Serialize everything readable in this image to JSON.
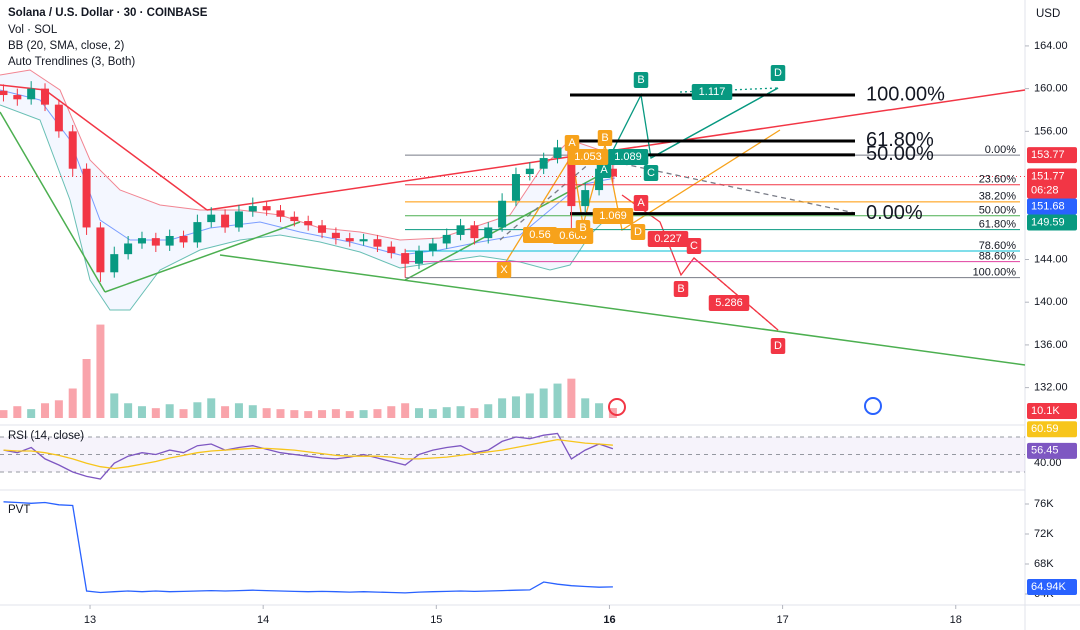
{
  "chart_data": [
    {
      "type": "candlestick",
      "title": "Solana / U.S. Dollar · 30 · COINBASE",
      "indicators": [
        "Vol · SOL",
        "BB (20, SMA, close, 2)",
        "Auto Trendlines (3, Both)"
      ],
      "unit": "USD",
      "countdown": "06:28",
      "x": [
        12.5,
        12.58,
        12.66,
        12.74,
        12.82,
        12.9,
        12.98,
        13.06,
        13.14,
        13.22,
        13.3,
        13.38,
        13.46,
        13.54,
        13.62,
        13.7,
        13.78,
        13.86,
        13.94,
        14.02,
        14.1,
        14.18,
        14.26,
        14.34,
        14.42,
        14.5,
        14.58,
        14.66,
        14.74,
        14.82,
        14.9,
        14.98,
        15.06,
        15.14,
        15.22,
        15.3,
        15.38,
        15.46,
        15.54,
        15.62,
        15.7,
        15.78,
        15.86,
        15.94,
        16.02
      ],
      "open": [
        159.8,
        159.4,
        159.0,
        160.0,
        158.5,
        156.0,
        152.5,
        147.0,
        142.8,
        144.5,
        145.5,
        146.0,
        145.3,
        146.2,
        145.6,
        147.5,
        148.2,
        147.0,
        148.5,
        149.0,
        148.6,
        148.0,
        147.6,
        147.2,
        146.5,
        146.0,
        145.7,
        145.9,
        145.2,
        144.6,
        143.6,
        144.8,
        145.5,
        146.3,
        147.2,
        146.0,
        147.0,
        149.5,
        152.0,
        152.5,
        153.5,
        154.5,
        149.0,
        150.5,
        152.5
      ],
      "high": [
        160.4,
        160.0,
        160.7,
        160.5,
        159.0,
        156.6,
        153.0,
        147.5,
        145.2,
        146.2,
        146.6,
        146.5,
        146.8,
        146.7,
        148.2,
        148.9,
        148.7,
        149.1,
        149.8,
        149.5,
        149.1,
        148.5,
        148.1,
        147.7,
        147.0,
        146.5,
        146.4,
        146.3,
        145.7,
        145.0,
        145.3,
        146.0,
        146.9,
        147.8,
        147.6,
        147.5,
        150.2,
        152.6,
        153.1,
        154.0,
        155.2,
        155.0,
        151.2,
        153.1,
        153.0
      ],
      "low": [
        158.8,
        158.4,
        158.5,
        157.9,
        155.4,
        151.8,
        146.3,
        141.9,
        142.3,
        144.0,
        145.0,
        144.7,
        144.8,
        145.1,
        145.1,
        147.0,
        146.5,
        146.6,
        148.0,
        148.1,
        147.5,
        147.1,
        146.7,
        146.0,
        145.4,
        145.2,
        145.3,
        144.7,
        144.1,
        142.3,
        143.1,
        144.3,
        145.0,
        145.8,
        145.4,
        145.5,
        146.6,
        149.0,
        151.4,
        152.0,
        153.0,
        146.8,
        148.4,
        150.0,
        151.2
      ],
      "close": [
        159.4,
        159.0,
        160.0,
        158.5,
        156.0,
        152.5,
        147.0,
        142.8,
        144.5,
        145.5,
        146.0,
        145.3,
        146.2,
        145.6,
        147.5,
        148.2,
        147.0,
        148.5,
        149.0,
        148.6,
        148.0,
        147.6,
        147.2,
        146.5,
        146.0,
        145.7,
        145.9,
        145.2,
        144.6,
        143.6,
        144.8,
        145.5,
        146.3,
        147.2,
        146.0,
        147.0,
        149.5,
        152.0,
        152.5,
        153.5,
        154.5,
        149.0,
        150.5,
        152.5,
        151.77
      ],
      "colors": {
        "up": "#089981",
        "down": "#f23645"
      },
      "xlim": [
        12.48,
        18.4
      ],
      "xticks": [
        13,
        14,
        15,
        16,
        17,
        18
      ],
      "ylim": [
        128.5,
        168.3
      ],
      "yticks": [
        {
          "value": 164,
          "label": "164.00"
        },
        {
          "value": 160,
          "label": "160.00"
        },
        {
          "value": 156,
          "label": "156.00"
        },
        {
          "value": 144,
          "label": "144.00"
        },
        {
          "value": 140,
          "label": "140.00"
        },
        {
          "value": 136,
          "label": "136.00"
        },
        {
          "value": 132,
          "label": "132.00"
        }
      ],
      "price_tags": [
        {
          "value": 153.77,
          "color": "#f23645"
        },
        {
          "value": 151.68,
          "color": "#2962ff"
        },
        {
          "value": 149.59,
          "color": "#089981"
        }
      ],
      "fib_levels": [
        {
          "label": "0.00%",
          "price": 153.77,
          "color": "#787b86"
        },
        {
          "label": "23.60%",
          "price": 151.0,
          "color": "#f23645"
        },
        {
          "label": "38.20%",
          "price": 149.4,
          "color": "#ff9800"
        },
        {
          "label": "50.00%",
          "price": 148.1,
          "color": "#4caf50"
        },
        {
          "label": "61.80%",
          "price": 146.8,
          "color": "#089981"
        },
        {
          "label": "78.60%",
          "price": 144.8,
          "color": "#00bcd4"
        },
        {
          "label": "88.60%",
          "price": 143.8,
          "color": "#e040a0"
        },
        {
          "label": "100.00%",
          "price": 142.3,
          "color": "#787b86"
        }
      ],
      "fib_targets": [
        {
          "label": "100.00%",
          "price": 159.4
        },
        {
          "label": "61.80%",
          "price": 155.1
        },
        {
          "label": "50.00%",
          "price": 153.8
        },
        {
          "label": "0.00%",
          "price": 148.3
        }
      ],
      "pattern_labels": [
        "X",
        "A",
        "B",
        "C",
        "D",
        "1.053",
        "1.089",
        "0.56",
        "0.608",
        "1.069",
        "0.227",
        "5.286",
        "1.117"
      ]
    },
    {
      "type": "bar",
      "values": [
        8000,
        12000,
        9000,
        15000,
        18000,
        30000,
        60000,
        95000,
        25000,
        15000,
        12000,
        10000,
        14000,
        9000,
        16000,
        20000,
        12000,
        15000,
        13000,
        10000,
        9000,
        8000,
        7000,
        8000,
        9000,
        7000,
        8000,
        9000,
        12000,
        15000,
        10000,
        9000,
        11000,
        12000,
        10000,
        14000,
        20000,
        22000,
        25000,
        30000,
        35000,
        40000,
        20000,
        15000,
        10100
      ],
      "ylim": [
        0,
        120000
      ],
      "current": {
        "value": 10100,
        "label": "10.1K"
      }
    },
    {
      "type": "line",
      "title": "RSI (14, close)",
      "series": [
        {
          "name": "RSI",
          "color": "#7e57c2",
          "values": [
            55,
            52,
            58,
            45,
            38,
            30,
            25,
            22,
            40,
            48,
            52,
            50,
            55,
            52,
            60,
            62,
            55,
            58,
            60,
            56,
            52,
            50,
            48,
            46,
            45,
            47,
            50,
            46,
            42,
            38,
            50,
            55,
            58,
            60,
            52,
            55,
            65,
            70,
            68,
            72,
            74,
            45,
            55,
            62,
            56.45
          ]
        },
        {
          "name": "MA",
          "color": "#f7c51b",
          "values": [
            55,
            54,
            54,
            52,
            49,
            45,
            40,
            36,
            34,
            36,
            39,
            42,
            46,
            49,
            52,
            54,
            55,
            56,
            57,
            57,
            56,
            55,
            53,
            51,
            49,
            48,
            48,
            48,
            47,
            45,
            45,
            46,
            47,
            49,
            51,
            53,
            55,
            58,
            61,
            64,
            67,
            65,
            63,
            62,
            60.59
          ]
        }
      ],
      "bands": [
        70,
        50,
        30
      ],
      "ylim": [
        9.4,
        83.7
      ],
      "yticks": [
        {
          "value": 40,
          "label": "40.00"
        }
      ]
    },
    {
      "type": "line",
      "title": "PVT",
      "series": [
        {
          "name": "PVT",
          "color": "#2962ff",
          "values": [
            76300,
            76200,
            76100,
            76200,
            75900,
            75800,
            64400,
            64200,
            64300,
            64400,
            64300,
            64400,
            64300,
            64350,
            64400,
            64450,
            64400,
            64450,
            64500,
            64450,
            64400,
            64350,
            64300,
            64350,
            64300,
            64250,
            64300,
            64250,
            64200,
            64150,
            64250,
            64300,
            64350,
            64400,
            64350,
            64400,
            64450,
            64500,
            64550,
            65600,
            65300,
            65100,
            65000,
            64900,
            64940
          ]
        }
      ],
      "ylim": [
        62533,
        77867
      ],
      "yticks": [
        {
          "value": 76000,
          "label": "76K"
        },
        {
          "value": 72000,
          "label": "72K"
        },
        {
          "value": 68000,
          "label": "68K"
        },
        {
          "value": 64000,
          "label": "64K"
        }
      ],
      "current": {
        "value": 64940,
        "label": "64.94K"
      }
    }
  ]
}
